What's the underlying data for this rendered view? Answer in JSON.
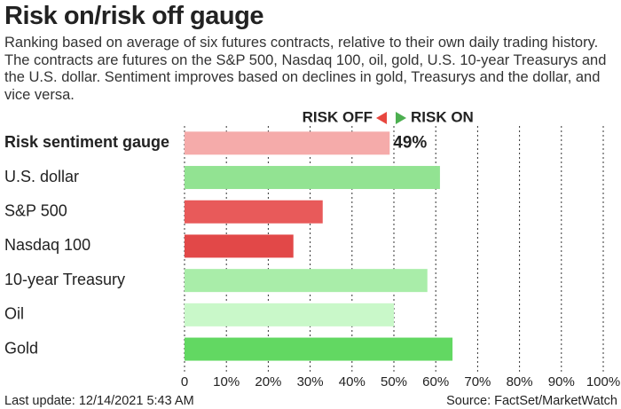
{
  "chart_data": {
    "type": "bar",
    "orientation": "horizontal",
    "title": "Risk on/risk off gauge",
    "subtitle": "Ranking based on average of six futures contracts, relative to their own daily trading history. The contracts are futures on the S&P 500, Nasdaq 100, oil, gold, U.S. 10-year Treasurys and the U.S. dollar. Sentiment improves based on declines in gold, Treasurys and the dollar, and vice versa.",
    "legend": {
      "left": "RISK OFF",
      "left_color": "#e8473f",
      "right": "RISK ON",
      "right_color": "#4caf50"
    },
    "categories": [
      "Risk sentiment gauge",
      "U.S. dollar",
      "S&P 500",
      "Nasdaq 100",
      "10-year Treasury",
      "Oil",
      "Gold"
    ],
    "values": [
      49,
      61,
      33,
      26,
      58,
      50,
      64
    ],
    "value_labels": [
      "49%",
      null,
      null,
      null,
      null,
      null,
      null
    ],
    "colors": [
      "#f5abaa",
      "#92e392",
      "#e85a5a",
      "#e24848",
      "#a9eda9",
      "#c9f8c9",
      "#62d862"
    ],
    "xlim": [
      0,
      100
    ],
    "xticks": [
      0,
      {
        "value": 10,
        "label": "10%"
      },
      {
        "value": 20,
        "label": "20%"
      },
      {
        "value": 30,
        "label": "30%"
      },
      {
        "value": 40,
        "label": "40%"
      },
      {
        "value": 50,
        "label": "50%"
      },
      {
        "value": 60,
        "label": "60%"
      },
      {
        "value": 70,
        "label": "70%"
      },
      {
        "value": 80,
        "label": "80%"
      },
      {
        "value": 90,
        "label": "90%"
      },
      {
        "value": 100,
        "label": "100%"
      }
    ],
    "grid": true,
    "footer_left": "Last update: 12/14/2021 5:43 AM",
    "footer_right": "Source: FactSet/MarketWatch"
  }
}
